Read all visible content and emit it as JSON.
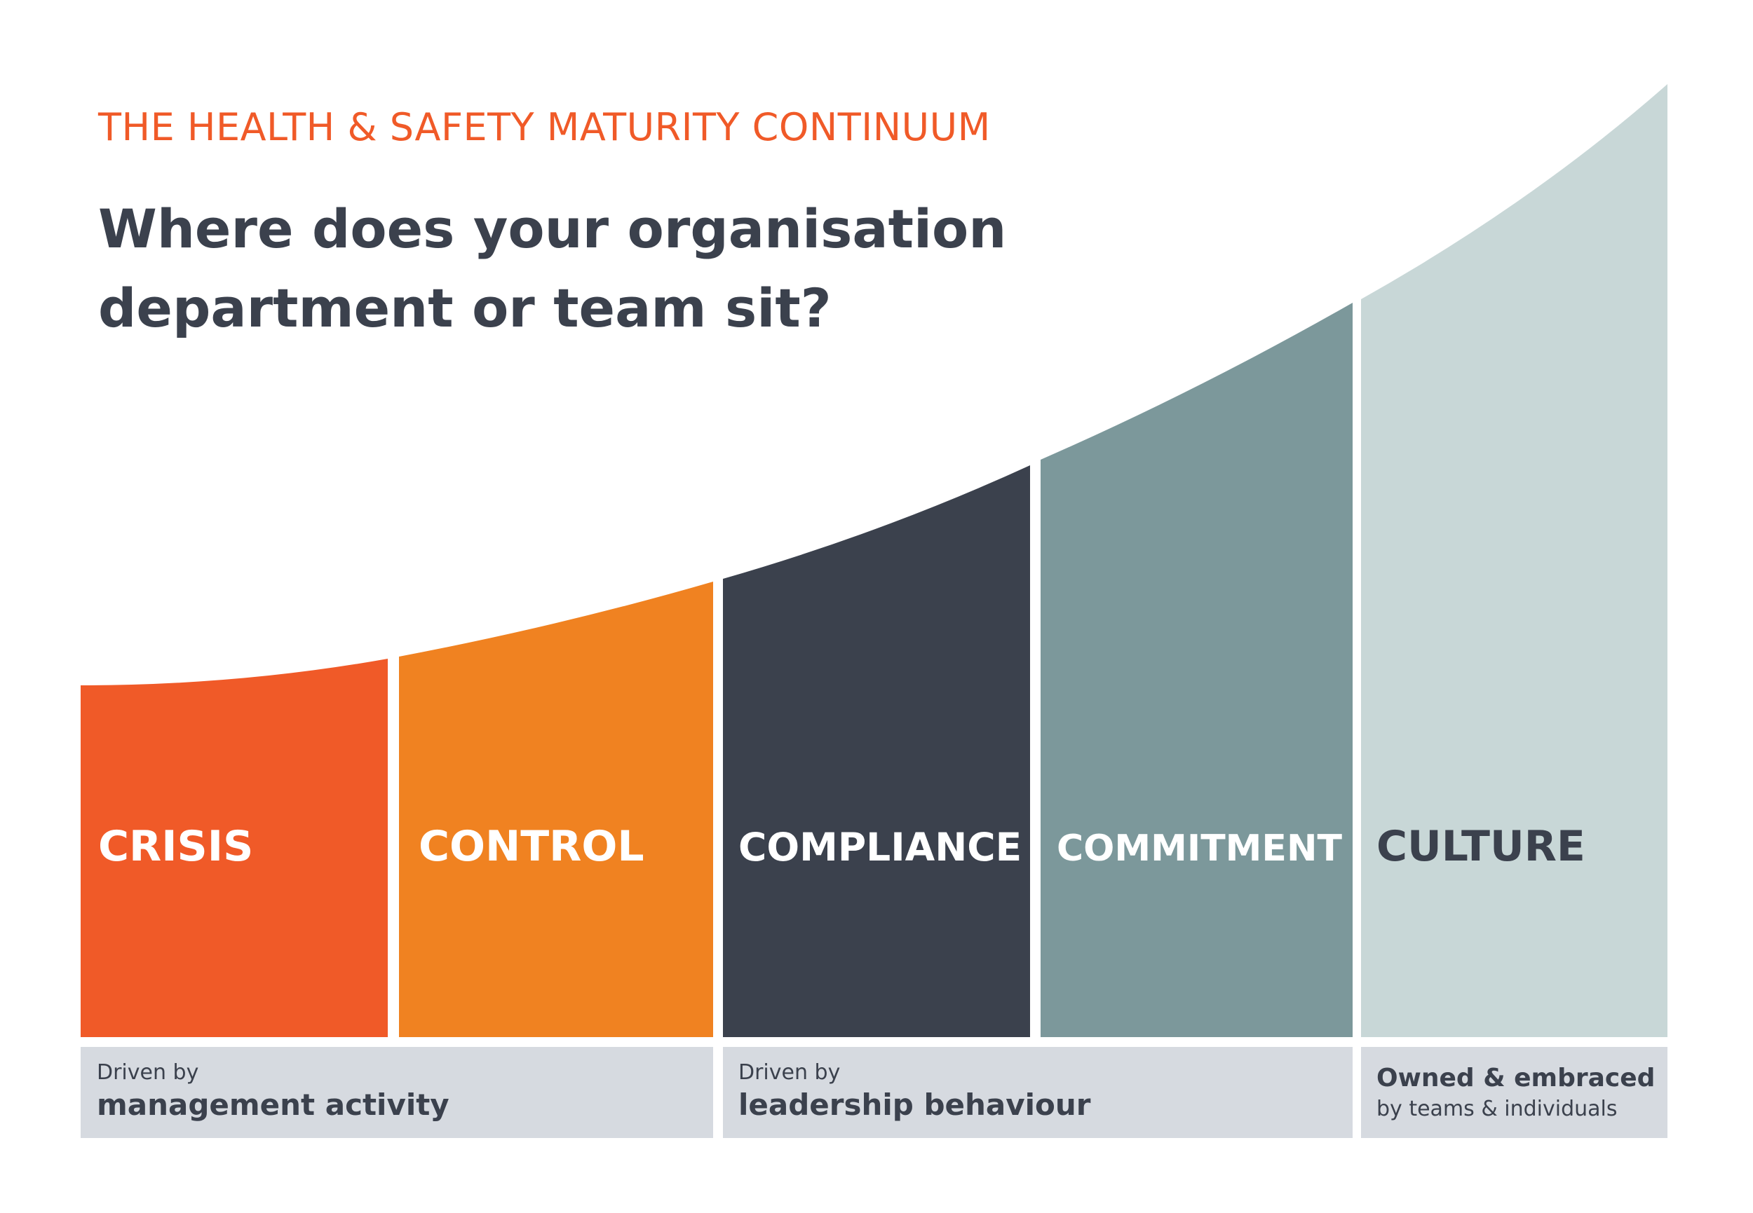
{
  "header": {
    "kicker": "THE HEALTH & SAFETY MATURITY CONTINUUM",
    "headline_line1": "Where does your organisation",
    "headline_line2": "department or team sit?"
  },
  "stages": [
    {
      "label": "CRISIS",
      "color": "#F05A28",
      "text_color": "#FFFFFF"
    },
    {
      "label": "CONTROL",
      "color": "#F08221",
      "text_color": "#FFFFFF"
    },
    {
      "label": "COMPLIANCE",
      "color": "#3B414D",
      "text_color": "#FFFFFF"
    },
    {
      "label": "COMMITMENT",
      "color": "#7C989B",
      "text_color": "#FFFFFF"
    },
    {
      "label": "CULTURE",
      "color": "#C8D7D7",
      "text_color": "#3B414D"
    }
  ],
  "drivers": [
    {
      "line1": "Driven by",
      "line2": "management activity"
    },
    {
      "line1": "Driven by",
      "line2": "leadership behaviour"
    },
    {
      "line1": "Owned & embraced",
      "line2": "by teams & individuals"
    }
  ],
  "colors": {
    "kicker": "#F05A28",
    "headline": "#3B414D",
    "driver_bg": "#D6DAE0",
    "driver_text": "#3B414D"
  }
}
